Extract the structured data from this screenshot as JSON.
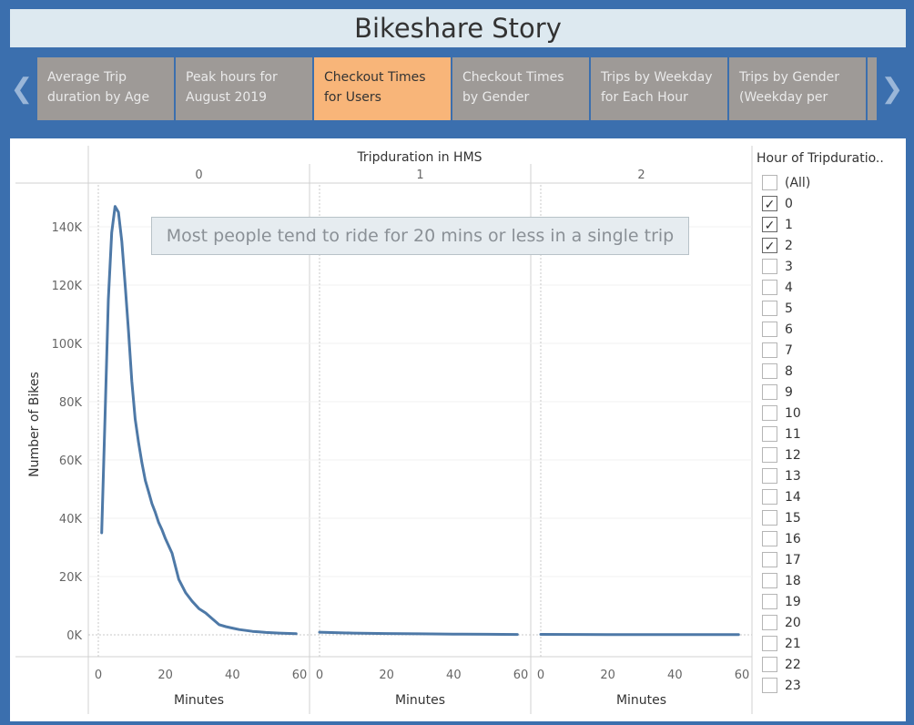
{
  "story": {
    "title": "Bikeshare Story",
    "points": [
      {
        "label": "Average Trip duration by Age",
        "active": false
      },
      {
        "label": "Peak hours for August 2019",
        "active": false
      },
      {
        "label": "Checkout Times for Users",
        "active": true
      },
      {
        "label": "Checkout Times by Gender",
        "active": false
      },
      {
        "label": "Trips by Weekday for Each Hour",
        "active": false
      },
      {
        "label": "Trips by Gender (Weekday per",
        "active": false
      }
    ],
    "prev_icon": "chevron-left-icon",
    "next_icon": "chevron-right-icon"
  },
  "colors": {
    "line": "#4e79a7",
    "frame": "#3b6fae",
    "active_tab": "#f8b579",
    "tab": "#9e9a97"
  },
  "annotation": "Most people tend to ride for 20 mins or less in a single trip",
  "filter": {
    "title": "Hour of Tripduratio..",
    "items": [
      {
        "label": "(All)",
        "checked": false
      },
      {
        "label": "0",
        "checked": true
      },
      {
        "label": "1",
        "checked": true
      },
      {
        "label": "2",
        "checked": true
      },
      {
        "label": "3",
        "checked": false
      },
      {
        "label": "4",
        "checked": false
      },
      {
        "label": "5",
        "checked": false
      },
      {
        "label": "6",
        "checked": false
      },
      {
        "label": "7",
        "checked": false
      },
      {
        "label": "8",
        "checked": false
      },
      {
        "label": "9",
        "checked": false
      },
      {
        "label": "10",
        "checked": false
      },
      {
        "label": "11",
        "checked": false
      },
      {
        "label": "12",
        "checked": false
      },
      {
        "label": "13",
        "checked": false
      },
      {
        "label": "14",
        "checked": false
      },
      {
        "label": "15",
        "checked": false
      },
      {
        "label": "16",
        "checked": false
      },
      {
        "label": "17",
        "checked": false
      },
      {
        "label": "18",
        "checked": false
      },
      {
        "label": "19",
        "checked": false
      },
      {
        "label": "20",
        "checked": false
      },
      {
        "label": "21",
        "checked": false
      },
      {
        "label": "22",
        "checked": false
      },
      {
        "label": "23",
        "checked": false
      }
    ]
  },
  "chart_data": {
    "type": "line",
    "column_header": "Tripduration in HMS",
    "ylabel": "Number of Bikes",
    "xlabel": "Minutes",
    "ylim": [
      0,
      150000
    ],
    "yticks": [
      0,
      20000,
      40000,
      60000,
      80000,
      100000,
      120000,
      140000
    ],
    "ytick_labels": [
      "0K",
      "20K",
      "40K",
      "60K",
      "80K",
      "100K",
      "120K",
      "140K"
    ],
    "xlim": [
      0,
      60
    ],
    "xticks": [
      0,
      20,
      40,
      60
    ],
    "grid": true,
    "panels": [
      {
        "name": "0",
        "x": [
          1,
          2,
          3,
          4,
          5,
          6,
          7,
          8,
          9,
          10,
          11,
          12,
          13,
          14,
          15,
          16,
          17,
          18,
          19,
          20,
          22,
          24,
          26,
          28,
          30,
          32,
          34,
          36,
          38,
          40,
          42,
          44,
          46,
          48,
          50,
          52,
          54,
          56,
          58,
          59
        ],
        "y": [
          35000,
          75000,
          115000,
          138000,
          147000,
          145000,
          135000,
          120000,
          104000,
          87000,
          74000,
          66000,
          59000,
          53000,
          49000,
          45000,
          42000,
          38500,
          36000,
          33000,
          28000,
          19000,
          14500,
          11500,
          9000,
          7500,
          5500,
          3500,
          2800,
          2300,
          1800,
          1500,
          1200,
          1000,
          800,
          700,
          600,
          500,
          450,
          400
        ]
      },
      {
        "name": "1",
        "x": [
          0,
          10,
          20,
          30,
          40,
          50,
          59
        ],
        "y": [
          900,
          600,
          450,
          350,
          250,
          180,
          130
        ]
      },
      {
        "name": "2",
        "x": [
          0,
          10,
          20,
          30,
          40,
          50,
          59
        ],
        "y": [
          150,
          120,
          100,
          90,
          80,
          70,
          60
        ]
      }
    ]
  }
}
